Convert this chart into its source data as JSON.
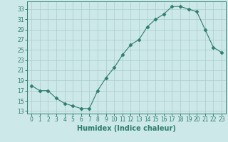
{
  "x": [
    0,
    1,
    2,
    3,
    4,
    5,
    6,
    7,
    8,
    9,
    10,
    11,
    12,
    13,
    14,
    15,
    16,
    17,
    18,
    19,
    20,
    21,
    22,
    23
  ],
  "y": [
    18,
    17,
    17,
    15.5,
    14.5,
    14,
    13.5,
    13.5,
    17,
    19.5,
    21.5,
    24,
    26,
    27,
    29.5,
    31,
    32,
    33.5,
    33.5,
    33,
    32.5,
    29,
    25.5,
    24.5
  ],
  "line_color": "#2e7d6e",
  "marker": "D",
  "marker_size": 2.5,
  "bg_color": "#cce8e8",
  "grid_color": "#aacccc",
  "tick_color": "#2e7d6e",
  "spine_color": "#2e7d6e",
  "xlabel": "Humidex (Indice chaleur)",
  "xlabel_fontsize": 7,
  "tick_fontsize": 5.5,
  "ylabel_ticks": [
    13,
    15,
    17,
    19,
    21,
    23,
    25,
    27,
    29,
    31,
    33
  ],
  "xlim": [
    -0.5,
    23.5
  ],
  "ylim": [
    12.5,
    34.5
  ],
  "figsize": [
    3.2,
    2.0
  ],
  "dpi": 100
}
